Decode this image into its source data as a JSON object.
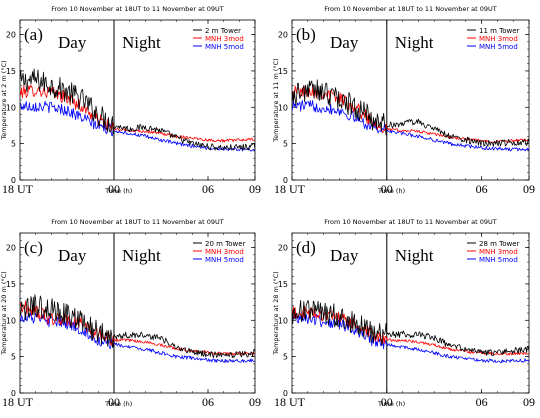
{
  "colors": {
    "tower": "#000000",
    "mnh3": "#ff0000",
    "mnh5": "#0000ff",
    "axis": "#000000"
  },
  "chart_data": [
    {
      "type": "line",
      "panel_label": "(a)",
      "title": "From 10 November at 18UT to 11 November at 09UT",
      "day_label": "Day",
      "night_label": "Night",
      "xlabel": "Time (h)",
      "ylabel": "Temperature at 2 m (°C)",
      "xlim": [
        0,
        15
      ],
      "ylim": [
        0,
        22
      ],
      "x_ticks": [
        0,
        6,
        12,
        15
      ],
      "x_tick_labels": [
        "18 UT",
        "00",
        "06",
        "09"
      ],
      "y_ticks": [
        0,
        5,
        10,
        15,
        20
      ],
      "vline_x": 6,
      "grid": false,
      "legend_position": "top-right",
      "x": [
        0,
        1,
        2,
        3,
        4,
        5,
        6,
        7,
        8,
        9,
        10,
        11,
        12,
        13,
        14,
        15
      ],
      "series": [
        {
          "name": "2 m Tower",
          "key": "tower",
          "values": [
            13.5,
            13.8,
            13.0,
            12.2,
            11.0,
            9.0,
            7.5,
            7.0,
            7.3,
            6.8,
            5.8,
            5.0,
            4.6,
            4.4,
            4.5,
            4.6
          ]
        },
        {
          "name": "MNH 3mod",
          "key": "mnh3",
          "values": [
            12.0,
            12.4,
            12.0,
            11.3,
            10.0,
            8.3,
            7.0,
            6.8,
            6.7,
            6.4,
            6.0,
            5.8,
            5.5,
            5.4,
            5.5,
            5.6
          ]
        },
        {
          "name": "MNH 5mod",
          "key": "mnh5",
          "values": [
            10.2,
            10.2,
            10.0,
            9.6,
            8.5,
            7.4,
            6.8,
            6.4,
            6.0,
            5.5,
            5.0,
            4.7,
            4.4,
            4.3,
            4.2,
            4.2
          ]
        }
      ]
    },
    {
      "type": "line",
      "panel_label": "(b)",
      "title": "From 10 November at 18UT to 11 November at 09UT",
      "day_label": "Day",
      "night_label": "Night",
      "xlabel": "Time (h)",
      "ylabel": "Temperature at 11 m (°C)",
      "xlim": [
        0,
        15
      ],
      "ylim": [
        0,
        22
      ],
      "x_ticks": [
        0,
        6,
        12,
        15
      ],
      "x_tick_labels": [
        "18 UT",
        "00",
        "06",
        "09"
      ],
      "y_ticks": [
        0,
        5,
        10,
        15,
        20
      ],
      "vline_x": 6,
      "grid": false,
      "legend_position": "top-right",
      "x": [
        0,
        1,
        2,
        3,
        4,
        5,
        6,
        7,
        8,
        9,
        10,
        11,
        12,
        13,
        14,
        15
      ],
      "series": [
        {
          "name": "11 m Tower",
          "key": "tower",
          "values": [
            11.5,
            12.5,
            12.0,
            11.2,
            10.0,
            8.5,
            7.5,
            7.8,
            8.0,
            7.0,
            6.0,
            5.5,
            5.0,
            5.0,
            5.2,
            5.2
          ]
        },
        {
          "name": "MNH 3mod",
          "key": "mnh3",
          "values": [
            12.0,
            12.3,
            12.0,
            11.3,
            10.0,
            8.2,
            7.0,
            6.8,
            6.7,
            6.3,
            5.9,
            5.6,
            5.4,
            5.3,
            5.4,
            5.5
          ]
        },
        {
          "name": "MNH 5mod",
          "key": "mnh5",
          "values": [
            10.2,
            10.2,
            10.0,
            9.6,
            8.5,
            7.4,
            6.8,
            6.4,
            6.0,
            5.5,
            5.0,
            4.7,
            4.4,
            4.3,
            4.2,
            4.2
          ]
        }
      ]
    },
    {
      "type": "line",
      "panel_label": "(c)",
      "title": "From 10 November at 18UT to 11 November at 09UT",
      "day_label": "Day",
      "night_label": "Night",
      "xlabel": "Time (h)",
      "ylabel": "Temperature at 20 m (°C)",
      "xlim": [
        0,
        15
      ],
      "ylim": [
        0,
        22
      ],
      "x_ticks": [
        0,
        6,
        12,
        15
      ],
      "x_tick_labels": [
        "18 UT",
        "00",
        "06",
        "09"
      ],
      "y_ticks": [
        0,
        5,
        10,
        15,
        20
      ],
      "vline_x": 6,
      "grid": false,
      "legend_position": "top-right",
      "x": [
        0,
        1,
        2,
        3,
        4,
        5,
        6,
        7,
        8,
        9,
        10,
        11,
        12,
        13,
        14,
        15
      ],
      "series": [
        {
          "name": "20 m Tower",
          "key": "tower",
          "values": [
            11.0,
            12.0,
            11.5,
            10.8,
            9.8,
            8.3,
            7.8,
            8.0,
            8.0,
            7.5,
            6.2,
            5.7,
            5.3,
            5.2,
            5.3,
            5.5
          ]
        },
        {
          "name": "MNH 3mod",
          "key": "mnh3",
          "values": [
            12.0,
            11.3,
            10.2,
            10.0,
            9.5,
            8.0,
            7.3,
            7.2,
            7.0,
            6.6,
            6.1,
            5.8,
            5.6,
            5.4,
            5.4,
            5.5
          ]
        },
        {
          "name": "MNH 5mod",
          "key": "mnh5",
          "values": [
            10.5,
            10.3,
            9.8,
            9.5,
            8.6,
            7.2,
            6.7,
            6.3,
            6.0,
            5.5,
            5.0,
            4.8,
            4.5,
            4.4,
            4.4,
            4.5
          ]
        }
      ]
    },
    {
      "type": "line",
      "panel_label": "(d)",
      "title": "From 10 November at 18UT to 11 November at 09UT",
      "day_label": "Day",
      "night_label": "Night",
      "xlabel": "Time (h)",
      "ylabel": "Temperature at 28 m (°C)",
      "xlim": [
        0,
        15
      ],
      "ylim": [
        0,
        22
      ],
      "x_ticks": [
        0,
        6,
        12,
        15
      ],
      "x_tick_labels": [
        "18 UT",
        "00",
        "06",
        "09"
      ],
      "y_ticks": [
        0,
        5,
        10,
        15,
        20
      ],
      "vline_x": 6,
      "grid": false,
      "legend_position": "top-right",
      "x": [
        0,
        1,
        2,
        3,
        4,
        5,
        6,
        7,
        8,
        9,
        10,
        11,
        12,
        13,
        14,
        15
      ],
      "series": [
        {
          "name": "28 m Tower",
          "key": "tower",
          "values": [
            10.8,
            11.5,
            11.0,
            10.5,
            9.7,
            8.4,
            8.0,
            8.1,
            8.0,
            7.6,
            6.5,
            6.0,
            5.6,
            5.5,
            5.8,
            6.0
          ]
        },
        {
          "name": "MNH 3mod",
          "key": "mnh3",
          "values": [
            11.0,
            11.0,
            10.8,
            10.3,
            9.4,
            8.0,
            7.3,
            7.2,
            7.0,
            6.6,
            6.0,
            5.7,
            5.5,
            5.4,
            5.4,
            5.5
          ]
        },
        {
          "name": "MNH 5mod",
          "key": "mnh5",
          "values": [
            10.5,
            10.3,
            9.8,
            9.5,
            8.6,
            7.2,
            6.7,
            6.3,
            6.0,
            5.5,
            5.0,
            4.8,
            4.5,
            4.4,
            4.4,
            4.5
          ]
        }
      ]
    }
  ]
}
